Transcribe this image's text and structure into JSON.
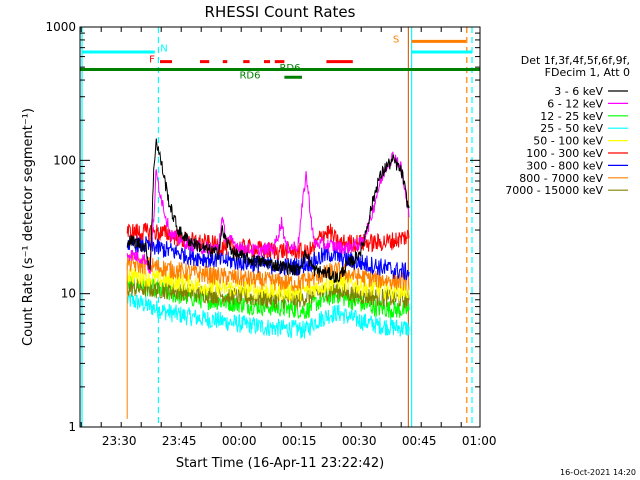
{
  "chart_data": {
    "type": "line",
    "title": "RHESSI Count Rates",
    "xlabel": "Start Time (16-Apr-11 23:22:42)",
    "ylabel": "Count Rate (s⁻¹ detector segment⁻¹)",
    "yscale": "log",
    "ylim": [
      1,
      1000
    ],
    "xlim_minutes": [
      -2.5,
      97.5
    ],
    "x_ticks": [
      {
        "label": "23:30",
        "t": 7.3
      },
      {
        "label": "23:45",
        "t": 22.3
      },
      {
        "label": "00:00",
        "t": 37.3
      },
      {
        "label": "00:15",
        "t": 52.3
      },
      {
        "label": "00:30",
        "t": 67.3
      },
      {
        "label": "00:45",
        "t": 82.3
      },
      {
        "label": "01:00",
        "t": 97.3
      }
    ],
    "y_ticks": [
      {
        "label": "1",
        "v": 1
      },
      {
        "label": "10",
        "v": 10
      },
      {
        "label": "100",
        "v": 100
      },
      {
        "label": "1000",
        "v": 1000
      }
    ],
    "legend_header": [
      "Det 1f,3f,4f,5f,6f,9f,",
      "FDecim 1, Att 0"
    ],
    "legend_position": "right",
    "data_start": 9.3,
    "data_end": 79.8,
    "series": [
      {
        "name": "3 - 6 keV",
        "color": "#000000",
        "points": [
          [
            9.3,
            25
          ],
          [
            12,
            24
          ],
          [
            14,
            22
          ],
          [
            15,
            15
          ],
          [
            16,
            90
          ],
          [
            16.5,
            145
          ],
          [
            18,
            90
          ],
          [
            20,
            45
          ],
          [
            22,
            30
          ],
          [
            24,
            26
          ],
          [
            28,
            22
          ],
          [
            32,
            20
          ],
          [
            33,
            30
          ],
          [
            34,
            25
          ],
          [
            36,
            20
          ],
          [
            40,
            18
          ],
          [
            44,
            17
          ],
          [
            48,
            16
          ],
          [
            52,
            15
          ],
          [
            54,
            20
          ],
          [
            56,
            15
          ],
          [
            60,
            14
          ],
          [
            62,
            13
          ],
          [
            64,
            16
          ],
          [
            66,
            18
          ],
          [
            68,
            22
          ],
          [
            70,
            40
          ],
          [
            72,
            70
          ],
          [
            74,
            90
          ],
          [
            76,
            100
          ],
          [
            78,
            80
          ],
          [
            79.5,
            45
          ]
        ]
      },
      {
        "name": "6 - 12 keV",
        "color": "#ff00ff",
        "points": [
          [
            9.3,
            20
          ],
          [
            12,
            19
          ],
          [
            14,
            18
          ],
          [
            15,
            15
          ],
          [
            16,
            40
          ],
          [
            16.5,
            80
          ],
          [
            18,
            50
          ],
          [
            20,
            28
          ],
          [
            24,
            24
          ],
          [
            28,
            22
          ],
          [
            32,
            22
          ],
          [
            33,
            36
          ],
          [
            34,
            26
          ],
          [
            38,
            22
          ],
          [
            42,
            21
          ],
          [
            46,
            22
          ],
          [
            48,
            35
          ],
          [
            49,
            22
          ],
          [
            52,
            23
          ],
          [
            54,
            80
          ],
          [
            56,
            24
          ],
          [
            60,
            23
          ],
          [
            64,
            22
          ],
          [
            68,
            24
          ],
          [
            70,
            35
          ],
          [
            72,
            60
          ],
          [
            74,
            90
          ],
          [
            76,
            110
          ],
          [
            78,
            85
          ],
          [
            79.5,
            40
          ]
        ]
      },
      {
        "name": "12 - 25 keV",
        "color": "#00ff00",
        "points": [
          [
            9.3,
            12
          ],
          [
            12,
            11.5
          ],
          [
            16,
            11
          ],
          [
            20,
            10
          ],
          [
            24,
            9.5
          ],
          [
            28,
            9
          ],
          [
            32,
            8.8
          ],
          [
            36,
            8.5
          ],
          [
            40,
            8.2
          ],
          [
            44,
            8
          ],
          [
            48,
            7.8
          ],
          [
            52,
            7.6
          ],
          [
            54,
            7.4
          ],
          [
            56,
            8.4
          ],
          [
            60,
            9.5
          ],
          [
            62,
            9.8
          ],
          [
            64,
            9.2
          ],
          [
            68,
            8.4
          ],
          [
            72,
            7.8
          ],
          [
            76,
            7.6
          ],
          [
            79.5,
            7.5
          ]
        ]
      },
      {
        "name": "25 - 50 keV",
        "color": "#00ffff",
        "points": [
          [
            9.3,
            9
          ],
          [
            12,
            8.6
          ],
          [
            16,
            7.8
          ],
          [
            20,
            7.2
          ],
          [
            24,
            6.8
          ],
          [
            28,
            6.5
          ],
          [
            32,
            6.3
          ],
          [
            36,
            6
          ],
          [
            40,
            5.8
          ],
          [
            44,
            5.6
          ],
          [
            48,
            5.5
          ],
          [
            52,
            5.4
          ],
          [
            54,
            5.3
          ],
          [
            56,
            6.1
          ],
          [
            60,
            7
          ],
          [
            62,
            7.2
          ],
          [
            64,
            6.8
          ],
          [
            68,
            6.2
          ],
          [
            72,
            5.8
          ],
          [
            76,
            5.6
          ],
          [
            79.5,
            5.5
          ]
        ]
      },
      {
        "name": "50 - 100 keV",
        "color": "#ffff00",
        "points": [
          [
            9.3,
            14
          ],
          [
            12,
            13.5
          ],
          [
            16,
            13
          ],
          [
            20,
            12.5
          ],
          [
            24,
            12
          ],
          [
            28,
            11.5
          ],
          [
            32,
            11
          ],
          [
            36,
            11
          ],
          [
            40,
            10.8
          ],
          [
            44,
            10.6
          ],
          [
            48,
            10.4
          ],
          [
            52,
            10.2
          ],
          [
            56,
            11
          ],
          [
            60,
            12
          ],
          [
            62,
            12.5
          ],
          [
            64,
            12
          ],
          [
            68,
            11.3
          ],
          [
            72,
            10.8
          ],
          [
            76,
            10.6
          ],
          [
            79.5,
            10.5
          ]
        ]
      },
      {
        "name": "100 - 300 keV",
        "color": "#ff0000",
        "points": [
          [
            9.3,
            29
          ],
          [
            12,
            29
          ],
          [
            16,
            29
          ],
          [
            20,
            28
          ],
          [
            24,
            25
          ],
          [
            28,
            24
          ],
          [
            32,
            23
          ],
          [
            36,
            22
          ],
          [
            40,
            22
          ],
          [
            44,
            21
          ],
          [
            48,
            21
          ],
          [
            52,
            21
          ],
          [
            54,
            20
          ],
          [
            56,
            22
          ],
          [
            58,
            28
          ],
          [
            60,
            29
          ],
          [
            62,
            24
          ],
          [
            64,
            24
          ],
          [
            68,
            24
          ],
          [
            72,
            24
          ],
          [
            76,
            25
          ],
          [
            79.5,
            27
          ]
        ]
      },
      {
        "name": "300 - 800 keV",
        "color": "#0000ff",
        "points": [
          [
            9.3,
            24
          ],
          [
            12,
            23.5
          ],
          [
            16,
            22.5
          ],
          [
            20,
            21
          ],
          [
            24,
            19.5
          ],
          [
            28,
            18.5
          ],
          [
            32,
            18
          ],
          [
            36,
            17.5
          ],
          [
            40,
            17
          ],
          [
            44,
            16.5
          ],
          [
            48,
            16
          ],
          [
            52,
            16
          ],
          [
            56,
            17.5
          ],
          [
            58,
            19
          ],
          [
            60,
            20
          ],
          [
            62,
            19
          ],
          [
            64,
            18
          ],
          [
            68,
            17
          ],
          [
            72,
            16
          ],
          [
            76,
            15
          ],
          [
            79.5,
            14.5
          ]
        ]
      },
      {
        "name": "800 - 7000 keV",
        "color": "#ff8000",
        "points": [
          [
            9.3,
            17
          ],
          [
            12,
            16.5
          ],
          [
            16,
            16
          ],
          [
            20,
            15.2
          ],
          [
            24,
            14.5
          ],
          [
            28,
            14
          ],
          [
            32,
            13.6
          ],
          [
            36,
            13.2
          ],
          [
            40,
            12.8
          ],
          [
            44,
            12.5
          ],
          [
            48,
            12.2
          ],
          [
            52,
            12
          ],
          [
            56,
            13.2
          ],
          [
            60,
            14.5
          ],
          [
            62,
            14.8
          ],
          [
            64,
            14.2
          ],
          [
            68,
            13.3
          ],
          [
            72,
            12.8
          ],
          [
            76,
            12.5
          ],
          [
            79.5,
            12.3
          ]
        ]
      },
      {
        "name": "7000 - 15000 keV",
        "color": "#808000",
        "points": [
          [
            9.3,
            11
          ],
          [
            12,
            11
          ],
          [
            16,
            10.8
          ],
          [
            20,
            10.6
          ],
          [
            24,
            10.3
          ],
          [
            28,
            10
          ],
          [
            32,
            9.8
          ],
          [
            36,
            9.6
          ],
          [
            40,
            9.4
          ],
          [
            44,
            9.2
          ],
          [
            48,
            9
          ],
          [
            52,
            9
          ],
          [
            56,
            9.8
          ],
          [
            60,
            10.5
          ],
          [
            62,
            10.6
          ],
          [
            64,
            10.2
          ],
          [
            68,
            9.7
          ],
          [
            72,
            9.4
          ],
          [
            76,
            9.2
          ],
          [
            79.5,
            9
          ]
        ]
      }
    ],
    "vertical_lines": [
      {
        "t": -2,
        "color": "#00ffff",
        "dashed": false
      },
      {
        "t": 17.1,
        "color": "#00ffff",
        "dashed": true
      },
      {
        "t": 79.6,
        "color": "#d2691e",
        "dashed": false
      },
      {
        "t": 80.4,
        "color": "#00ffff",
        "dashed": false
      },
      {
        "t": 94.2,
        "color": "#ff8000",
        "dashed": true
      },
      {
        "t": 95.5,
        "color": "#00ffff",
        "dashed": true
      }
    ],
    "flag_bars": [
      {
        "label": "N",
        "color": "#00ffff",
        "value": 650,
        "segments": [
          [
            -2,
            16.2
          ]
        ]
      },
      {
        "label": "F",
        "color": "#ff0000",
        "value": 550,
        "segments": [
          [
            17.5,
            20.5
          ],
          [
            27.5,
            29.8
          ],
          [
            33.2,
            34.3
          ],
          [
            38.3,
            39.9
          ],
          [
            43.5,
            45
          ],
          [
            46.2,
            48.6
          ],
          [
            59.1,
            65.7
          ]
        ]
      },
      {
        "label": "S",
        "color": "#ff8000",
        "value": 780,
        "segments": [
          [
            80.4,
            94
          ]
        ]
      },
      {
        "label": "S",
        "color": "#00ffff",
        "value": 650,
        "segments": [
          [
            80.4,
            95.5
          ]
        ]
      },
      {
        "label": "RD6",
        "color": "#008000",
        "value": 480,
        "segments": [
          [
            -2.5,
            97.5
          ]
        ]
      },
      {
        "label": "RD6",
        "color": "#008000",
        "value": 420,
        "segments": [
          [
            48.6,
            53
          ]
        ]
      }
    ],
    "flag_labels": [
      {
        "text": "N",
        "color": "#00ffff",
        "t": 18.5,
        "value": 700
      },
      {
        "text": "F",
        "color": "#ff0000",
        "t": 15.5,
        "value": 580
      },
      {
        "text": "S",
        "color": "#ff8000",
        "t": 76.5,
        "value": 820
      },
      {
        "text": "RD6",
        "color": "#008000",
        "t": 50,
        "value": 500
      },
      {
        "text": "RD6",
        "color": "#008000",
        "t": 40,
        "value": 440
      }
    ]
  },
  "footer": {
    "timestamp": "16-Oct-2021 14:20"
  }
}
